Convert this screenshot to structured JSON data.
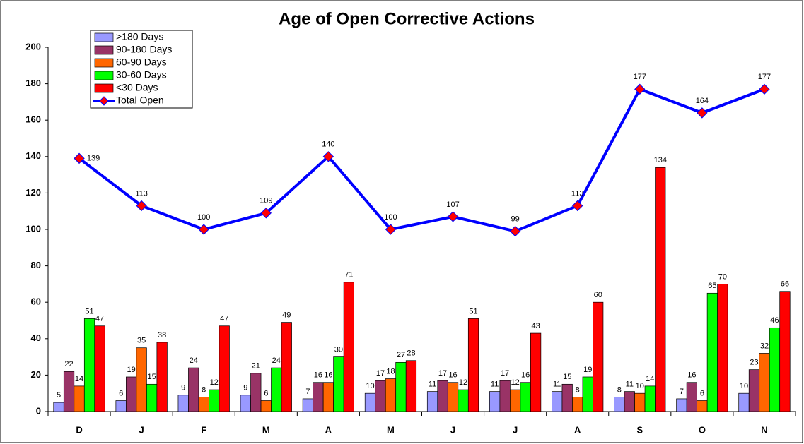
{
  "chart_data": {
    "type": "bar",
    "title": "Age of Open Corrective Actions",
    "categories": [
      "D",
      "J",
      "F",
      "M",
      "A",
      "M",
      "J",
      "J",
      "A",
      "S",
      "O",
      "N"
    ],
    "series": [
      {
        "name": ">180 Days",
        "color": "#9999ff",
        "values": [
          5,
          6,
          9,
          9,
          7,
          10,
          11,
          11,
          11,
          8,
          7,
          10
        ]
      },
      {
        "name": "90-180 Days",
        "color": "#993366",
        "values": [
          22,
          19,
          24,
          21,
          16,
          17,
          17,
          17,
          15,
          11,
          16,
          23
        ]
      },
      {
        "name": "60-90 Days",
        "color": "#ff6600",
        "values": [
          14,
          35,
          8,
          6,
          16,
          18,
          16,
          12,
          8,
          10,
          6,
          32
        ]
      },
      {
        "name": "30-60 Days",
        "color": "#00ff00",
        "values": [
          51,
          15,
          12,
          24,
          30,
          27,
          12,
          16,
          19,
          14,
          65,
          46
        ]
      },
      {
        "name": "<30 Days",
        "color": "#ff0000",
        "values": [
          47,
          38,
          47,
          49,
          71,
          28,
          51,
          43,
          60,
          134,
          70,
          66
        ]
      },
      {
        "name": "Total Open",
        "type": "line",
        "color": "#0000ff",
        "marker_color": "#ff0000",
        "values": [
          139,
          113,
          100,
          109,
          140,
          100,
          107,
          99,
          113,
          177,
          164,
          177
        ]
      }
    ],
    "ylim": [
      0,
      200
    ],
    "yticks": [
      0,
      20,
      40,
      60,
      80,
      100,
      120,
      140,
      160,
      180,
      200
    ],
    "grid": false,
    "legend": "upper left"
  }
}
